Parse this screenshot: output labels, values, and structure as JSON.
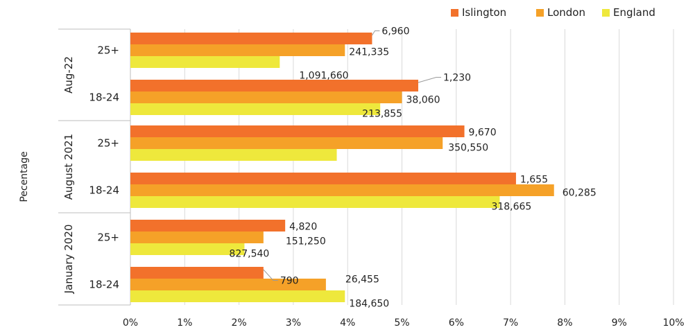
{
  "chart_data": {
    "type": "bar",
    "orientation": "horizontal",
    "title": "",
    "xlabel": "",
    "ylabel": "Pecentage",
    "xlim": [
      0,
      10
    ],
    "x_ticks": [
      "0%",
      "1%",
      "2%",
      "3%",
      "4%",
      "5%",
      "6%",
      "7%",
      "8%",
      "9%",
      "10%"
    ],
    "grid": true,
    "legend_position": "top-right",
    "series": [
      {
        "name": "Islington",
        "color": "#F2712B"
      },
      {
        "name": "London",
        "color": "#F5A128"
      },
      {
        "name": "England",
        "color": "#EEE83C"
      }
    ],
    "groups": [
      {
        "name": "Aug-22",
        "categories": [
          {
            "name": "25+",
            "values": [
              4.45,
              3.95,
              2.75
            ],
            "labels": [
              "6,960",
              "241,335",
              "1,091,660"
            ]
          },
          {
            "name": "18-24",
            "values": [
              5.3,
              5.0,
              4.6
            ],
            "labels": [
              "1,230",
              "38,060",
              "213,855"
            ]
          }
        ]
      },
      {
        "name": "August 2021",
        "categories": [
          {
            "name": "25+",
            "values": [
              6.15,
              5.75,
              3.8
            ],
            "labels": [
              "9,670",
              "350,550",
              ""
            ]
          },
          {
            "name": "18-24",
            "values": [
              7.1,
              7.8,
              6.8
            ],
            "labels": [
              "1,655",
              "60,285",
              "318,665"
            ]
          }
        ]
      },
      {
        "name": "January 2020",
        "categories": [
          {
            "name": "25+",
            "values": [
              2.85,
              2.45,
              2.1
            ],
            "labels": [
              "4,820",
              "151,250",
              "827,540"
            ]
          },
          {
            "name": "18-24",
            "values": [
              2.45,
              3.6,
              3.95
            ],
            "labels": [
              "790",
              "26,455",
              "184,650"
            ]
          }
        ]
      }
    ]
  }
}
